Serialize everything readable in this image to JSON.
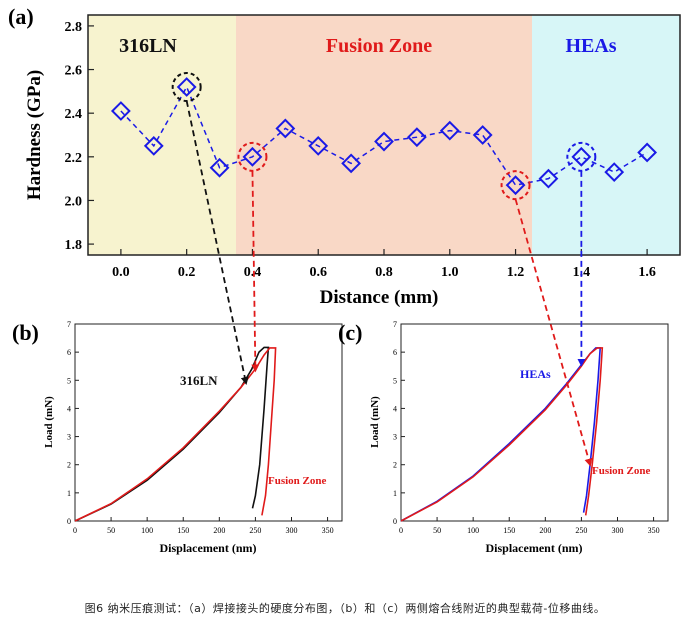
{
  "caption": "图6 纳米压痕测试：（a）焊接接头的硬度分布图，（b）和（c）两侧熔合线附近的典型载荷-位移曲线。",
  "colors": {
    "zone1_bg": "#f7f3cf",
    "zone2_bg": "#f9d8c6",
    "zone3_bg": "#d7f6f7",
    "series_blue": "#1a1ae6",
    "highlight_red": "#e01a1a",
    "highlight_black": "#111111",
    "zone2_text": "#e01a1a",
    "zone3_text": "#1a1ae6"
  },
  "chart_data": [
    {
      "panel": "(a)",
      "type": "line",
      "xlabel": "Distance (mm)",
      "ylabel": "Hardness (GPa)",
      "xlim": [
        -0.1,
        1.7
      ],
      "ylim": [
        1.75,
        2.85
      ],
      "xticks": [
        "0.0",
        "0.2",
        "0.4",
        "0.6",
        "0.8",
        "1.0",
        "1.2",
        "1.4",
        "1.6"
      ],
      "xtick_values": [
        0,
        0.2,
        0.4,
        0.6,
        0.8,
        1.0,
        1.2,
        1.4,
        1.6
      ],
      "yticks": [
        "1.8",
        "2.0",
        "2.2",
        "2.4",
        "2.6",
        "2.8"
      ],
      "ytick_values": [
        1.8,
        2.0,
        2.2,
        2.4,
        2.6,
        2.8
      ],
      "zones": [
        {
          "label": "316LN",
          "from": -0.1,
          "to": 0.35
        },
        {
          "label": "Fusion Zone",
          "from": 0.35,
          "to": 1.25
        },
        {
          "label": "HEAs",
          "from": 1.25,
          "to": 1.7
        }
      ],
      "points": [
        {
          "x": 0.0,
          "y": 2.41
        },
        {
          "x": 0.1,
          "y": 2.25
        },
        {
          "x": 0.2,
          "y": 2.52
        },
        {
          "x": 0.3,
          "y": 2.15
        },
        {
          "x": 0.4,
          "y": 2.2
        },
        {
          "x": 0.5,
          "y": 2.33
        },
        {
          "x": 0.6,
          "y": 2.25
        },
        {
          "x": 0.7,
          "y": 2.17
        },
        {
          "x": 0.8,
          "y": 2.27
        },
        {
          "x": 0.9,
          "y": 2.29
        },
        {
          "x": 1.0,
          "y": 2.32
        },
        {
          "x": 1.1,
          "y": 2.3
        },
        {
          "x": 1.2,
          "y": 2.07
        },
        {
          "x": 1.3,
          "y": 2.1
        },
        {
          "x": 1.4,
          "y": 2.2
        },
        {
          "x": 1.5,
          "y": 2.13
        },
        {
          "x": 1.6,
          "y": 2.22
        }
      ],
      "highlighted": [
        {
          "x": 0.2,
          "y": 2.52,
          "color": "black"
        },
        {
          "x": 0.4,
          "y": 2.2,
          "color": "red"
        },
        {
          "x": 1.2,
          "y": 2.07,
          "color": "red"
        },
        {
          "x": 1.4,
          "y": 2.2,
          "color": "blue"
        }
      ]
    },
    {
      "panel": "(b)",
      "type": "line",
      "xlabel": "Displacement (nm)",
      "ylabel": "Load (mN)",
      "xlim": [
        0,
        370
      ],
      "ylim": [
        0,
        7
      ],
      "xticks": [
        "0",
        "50",
        "100",
        "150",
        "200",
        "250",
        "300",
        "350"
      ],
      "xtick_values": [
        0,
        50,
        100,
        150,
        200,
        250,
        300,
        350
      ],
      "yticks": [
        "0",
        "1",
        "2",
        "3",
        "4",
        "5",
        "6",
        "7"
      ],
      "ytick_values": [
        0,
        1,
        2,
        3,
        4,
        5,
        6,
        7
      ],
      "series": [
        {
          "name": "316LN",
          "color": "black",
          "points": [
            [
              0,
              0
            ],
            [
              50,
              0.6
            ],
            [
              100,
              1.45
            ],
            [
              150,
              2.55
            ],
            [
              200,
              3.85
            ],
            [
              230,
              4.75
            ],
            [
              245,
              5.4
            ],
            [
              255,
              6.0
            ],
            [
              262,
              6.17
            ],
            [
              268,
              6.17
            ],
            [
              266,
              5.5
            ],
            [
              262,
              4.0
            ],
            [
              256,
              2.0
            ],
            [
              250,
              0.9
            ],
            [
              246,
              0.45
            ]
          ]
        },
        {
          "name": "Fusion Zone",
          "color": "red",
          "points": [
            [
              0,
              0
            ],
            [
              50,
              0.62
            ],
            [
              100,
              1.5
            ],
            [
              150,
              2.6
            ],
            [
              200,
              3.9
            ],
            [
              230,
              4.75
            ],
            [
              250,
              5.4
            ],
            [
              262,
              5.9
            ],
            [
              270,
              6.15
            ],
            [
              278,
              6.15
            ],
            [
              276,
              5.0
            ],
            [
              272,
              3.5
            ],
            [
              268,
              2.0
            ],
            [
              264,
              0.9
            ],
            [
              259,
              0.2
            ]
          ]
        }
      ],
      "labels": [
        "316LN",
        "Fusion Zone"
      ]
    },
    {
      "panel": "(c)",
      "type": "line",
      "xlabel": "Displacement (nm)",
      "ylabel": "Load (mN)",
      "xlim": [
        0,
        370
      ],
      "ylim": [
        0,
        7
      ],
      "xticks": [
        "0",
        "50",
        "100",
        "150",
        "200",
        "250",
        "300",
        "350"
      ],
      "xtick_values": [
        0,
        50,
        100,
        150,
        200,
        250,
        300,
        350
      ],
      "yticks": [
        "0",
        "1",
        "2",
        "3",
        "4",
        "5",
        "6",
        "7"
      ],
      "ytick_values": [
        0,
        1,
        2,
        3,
        4,
        5,
        6,
        7
      ],
      "series": [
        {
          "name": "HEAs",
          "color": "blue",
          "points": [
            [
              0,
              0
            ],
            [
              50,
              0.7
            ],
            [
              100,
              1.6
            ],
            [
              150,
              2.75
            ],
            [
              200,
              4.0
            ],
            [
              230,
              4.9
            ],
            [
              250,
              5.55
            ],
            [
              262,
              5.95
            ],
            [
              270,
              6.15
            ],
            [
              276,
              6.15
            ],
            [
              273,
              5.0
            ],
            [
              268,
              3.5
            ],
            [
              262,
              2.0
            ],
            [
              257,
              0.9
            ],
            [
              253,
              0.3
            ]
          ]
        },
        {
          "name": "Fusion Zone",
          "color": "red",
          "points": [
            [
              0,
              0
            ],
            [
              50,
              0.68
            ],
            [
              100,
              1.57
            ],
            [
              150,
              2.7
            ],
            [
              200,
              3.95
            ],
            [
              230,
              4.85
            ],
            [
              250,
              5.5
            ],
            [
              262,
              5.95
            ],
            [
              272,
              6.15
            ],
            [
              279,
              6.15
            ],
            [
              276,
              5.0
            ],
            [
              271,
              3.5
            ],
            [
              265,
              2.0
            ],
            [
              260,
              0.9
            ],
            [
              256,
              0.2
            ]
          ]
        }
      ],
      "labels": [
        "HEAs",
        "Fusion Zone"
      ]
    }
  ]
}
